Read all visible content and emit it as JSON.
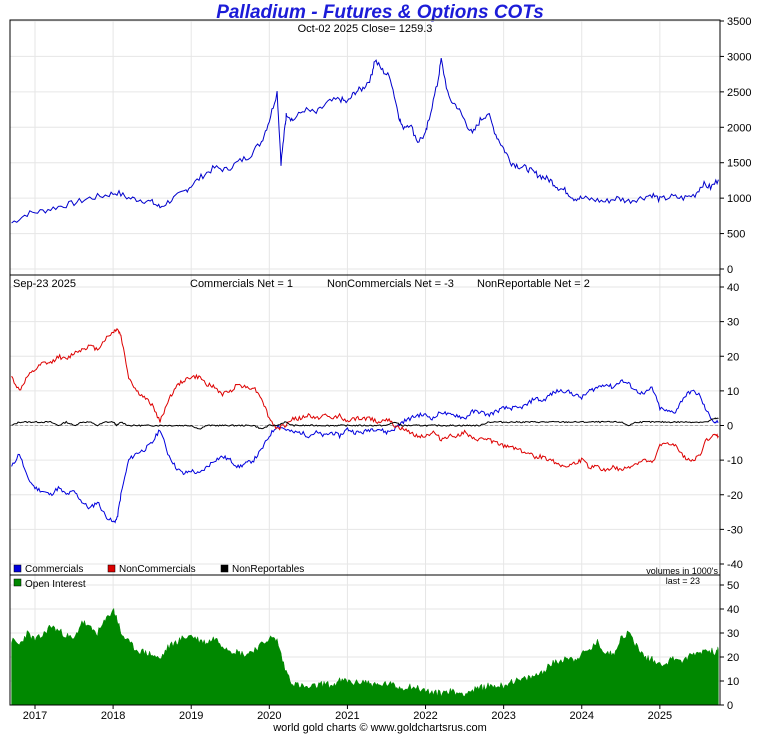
{
  "title": "Palladium - Futures & Options COTs",
  "footer": "world gold charts © www.goldchartsrus.com",
  "colors": {
    "title": "#1c1cd8",
    "price": "#0000cc",
    "commercials": "#0000dd",
    "noncommercials": "#dd0000",
    "nonreportables": "#000000",
    "open_interest": "#008800",
    "grid": "#e6e6e6",
    "zero_line": "#b0b0b0"
  },
  "chart_data": [
    {
      "id": "price",
      "type": "line",
      "header": "Oct-02  2025    Close= 1259.3",
      "ylim": [
        0,
        3500
      ],
      "yticks": [
        "0",
        "500",
        "1000",
        "1500",
        "2000",
        "2500",
        "3000",
        "3500"
      ],
      "x_range": [
        2016.68,
        2025.77
      ],
      "x": [
        2016.7,
        2016.9,
        2017.1,
        2017.3,
        2017.5,
        2017.7,
        2017.9,
        2018.05,
        2018.2,
        2018.35,
        2018.5,
        2018.6,
        2018.75,
        2018.9,
        2019.0,
        2019.15,
        2019.3,
        2019.45,
        2019.6,
        2019.75,
        2019.9,
        2020.0,
        2020.1,
        2020.15,
        2020.2,
        2020.22,
        2020.3,
        2020.45,
        2020.6,
        2020.75,
        2020.9,
        2021.0,
        2021.1,
        2021.2,
        2021.3,
        2021.35,
        2021.45,
        2021.55,
        2021.65,
        2021.7,
        2021.8,
        2021.9,
        2022.0,
        2022.05,
        2022.15,
        2022.2,
        2022.3,
        2022.4,
        2022.5,
        2022.6,
        2022.7,
        2022.8,
        2022.9,
        2023.0,
        2023.1,
        2023.2,
        2023.3,
        2023.4,
        2023.5,
        2023.6,
        2023.7,
        2023.8,
        2023.9,
        2024.0,
        2024.15,
        2024.3,
        2024.45,
        2024.6,
        2024.75,
        2024.9,
        2025.0,
        2025.15,
        2025.3,
        2025.45,
        2025.55,
        2025.65,
        2025.75
      ],
      "values": [
        650,
        780,
        820,
        880,
        930,
        1000,
        1040,
        1080,
        1000,
        980,
        940,
        870,
        980,
        1080,
        1180,
        1320,
        1430,
        1400,
        1510,
        1600,
        1800,
        2100,
        2500,
        1500,
        2000,
        2200,
        2100,
        2250,
        2200,
        2350,
        2400,
        2350,
        2500,
        2550,
        2700,
        2950,
        2800,
        2700,
        2200,
        2000,
        2050,
        1800,
        1900,
        2150,
        2600,
        2950,
        2400,
        2300,
        2100,
        1900,
        2100,
        2200,
        1900,
        1700,
        1500,
        1450,
        1420,
        1350,
        1300,
        1250,
        1150,
        1100,
        1000,
        1000,
        980,
        950,
        1000,
        960,
        1000,
        1050,
        980,
        1020,
        1000,
        1050,
        1200,
        1150,
        1260
      ]
    },
    {
      "id": "positions",
      "type": "line",
      "header_date": "Sep-23  2025",
      "header_commercials": "Commercials Net = 1",
      "header_noncommercials": "NonCommercials Net = -3",
      "header_nonreportable": "NonReportable Net = 2",
      "ylim": [
        -40,
        40
      ],
      "yticks": [
        "-40",
        "-30",
        "-20",
        "-10",
        "0",
        "10",
        "20",
        "30",
        "40"
      ],
      "x_range": [
        2016.68,
        2025.77
      ],
      "x": [
        2016.7,
        2016.8,
        2016.9,
        2017.0,
        2017.1,
        2017.2,
        2017.3,
        2017.4,
        2017.5,
        2017.6,
        2017.7,
        2017.8,
        2017.9,
        2018.0,
        2018.05,
        2018.1,
        2018.2,
        2018.3,
        2018.4,
        2018.5,
        2018.6,
        2018.7,
        2018.8,
        2018.9,
        2019.0,
        2019.1,
        2019.2,
        2019.3,
        2019.4,
        2019.5,
        2019.6,
        2019.7,
        2019.8,
        2019.9,
        2020.0,
        2020.1,
        2020.2,
        2020.3,
        2020.4,
        2020.5,
        2020.6,
        2020.7,
        2020.8,
        2020.9,
        2021.0,
        2021.1,
        2021.2,
        2021.3,
        2021.4,
        2021.5,
        2021.6,
        2021.7,
        2021.8,
        2021.9,
        2022.0,
        2022.1,
        2022.2,
        2022.3,
        2022.4,
        2022.5,
        2022.6,
        2022.7,
        2022.8,
        2022.9,
        2023.0,
        2023.1,
        2023.2,
        2023.3,
        2023.4,
        2023.5,
        2023.6,
        2023.7,
        2023.8,
        2023.9,
        2024.0,
        2024.1,
        2024.2,
        2024.3,
        2024.4,
        2024.5,
        2024.6,
        2024.7,
        2024.8,
        2024.9,
        2025.0,
        2025.1,
        2025.2,
        2025.3,
        2025.4,
        2025.5,
        2025.6,
        2025.7,
        2025.75
      ],
      "series": [
        {
          "name": "Commercials",
          "values": [
            -12,
            -8,
            -15,
            -18,
            -19,
            -20,
            -18,
            -20,
            -19,
            -22,
            -24,
            -22,
            -26,
            -28,
            -27,
            -20,
            -10,
            -8,
            -7,
            -5,
            -1,
            -8,
            -12,
            -14,
            -13,
            -14,
            -12,
            -10,
            -9,
            -10,
            -12,
            -11,
            -10,
            -7,
            -3,
            0,
            -1,
            -2,
            -2,
            -3,
            -2,
            -3,
            -2,
            -3,
            -1,
            -2,
            -2,
            -1,
            -1,
            -2,
            -1,
            1,
            2,
            3,
            3,
            2,
            4,
            3,
            3,
            2,
            4,
            4,
            3,
            4,
            5,
            5,
            5,
            6,
            8,
            7,
            9,
            10,
            10,
            9,
            8,
            10,
            11,
            12,
            11,
            13,
            12,
            10,
            9,
            11,
            5,
            4,
            4,
            8,
            10,
            9,
            4,
            1,
            1
          ]
        },
        {
          "name": "NonCommercials",
          "values": [
            14,
            10,
            14,
            16,
            18,
            18,
            20,
            19,
            21,
            22,
            23,
            22,
            25,
            27,
            28,
            26,
            14,
            10,
            8,
            6,
            1,
            7,
            11,
            13,
            14,
            14,
            12,
            11,
            9,
            10,
            12,
            11,
            11,
            8,
            2,
            -1,
            0,
            2,
            2,
            3,
            2,
            3,
            2,
            3,
            1,
            2,
            2,
            2,
            1,
            2,
            0,
            -1,
            -2,
            -3,
            -3,
            -2,
            -4,
            -3,
            -3,
            -2,
            -4,
            -4,
            -4,
            -5,
            -6,
            -6,
            -7,
            -8,
            -9,
            -9,
            -10,
            -11,
            -12,
            -11,
            -10,
            -12,
            -12,
            -13,
            -12,
            -13,
            -12,
            -11,
            -10,
            -11,
            -6,
            -5,
            -6,
            -9,
            -10,
            -9,
            -4,
            -3,
            -3
          ]
        },
        {
          "name": "NonReportables",
          "values": [
            0,
            1,
            1,
            1,
            1,
            1,
            0,
            1,
            0,
            1,
            1,
            0,
            1,
            1,
            0,
            1,
            0,
            0,
            0,
            0,
            0,
            0,
            0,
            0,
            0,
            -1,
            0,
            0,
            0,
            0,
            0,
            0,
            0,
            -1,
            0,
            0,
            1,
            0,
            0,
            0,
            0,
            0,
            0,
            0,
            0,
            0,
            0,
            0,
            0,
            0,
            1,
            0,
            0,
            0,
            0,
            0,
            0,
            0,
            0,
            0,
            0,
            0,
            1,
            1,
            1,
            1,
            1,
            1,
            1,
            1,
            1,
            1,
            1,
            1,
            1,
            1,
            1,
            1,
            1,
            1,
            0,
            1,
            1,
            1,
            1,
            1,
            1,
            1,
            1,
            1,
            1,
            2,
            2
          ]
        }
      ],
      "legend": [
        "Commercials",
        "NonCommercials",
        "NonReportables"
      ],
      "volume_note": "volumes in 1000's"
    },
    {
      "id": "open_interest",
      "type": "area",
      "legend": "Open Interest",
      "last_label": "last = 23",
      "ylim": [
        0,
        50
      ],
      "yticks": [
        "0",
        "10",
        "20",
        "30",
        "40",
        "50"
      ],
      "x_range": [
        2016.68,
        2025.77
      ],
      "x": [
        2016.7,
        2016.8,
        2016.9,
        2017.0,
        2017.1,
        2017.2,
        2017.3,
        2017.4,
        2017.5,
        2017.6,
        2017.7,
        2017.8,
        2017.9,
        2018.0,
        2018.05,
        2018.1,
        2018.2,
        2018.3,
        2018.4,
        2018.5,
        2018.6,
        2018.7,
        2018.8,
        2018.9,
        2019.0,
        2019.1,
        2019.2,
        2019.3,
        2019.4,
        2019.5,
        2019.6,
        2019.7,
        2019.8,
        2019.9,
        2020.0,
        2020.1,
        2020.2,
        2020.3,
        2020.4,
        2020.5,
        2020.6,
        2020.7,
        2020.8,
        2020.9,
        2021.0,
        2021.1,
        2021.2,
        2021.3,
        2021.4,
        2021.5,
        2021.6,
        2021.7,
        2021.8,
        2021.9,
        2022.0,
        2022.1,
        2022.2,
        2022.3,
        2022.4,
        2022.5,
        2022.6,
        2022.7,
        2022.8,
        2022.9,
        2023.0,
        2023.1,
        2023.2,
        2023.3,
        2023.4,
        2023.5,
        2023.6,
        2023.7,
        2023.8,
        2023.9,
        2024.0,
        2024.1,
        2024.2,
        2024.3,
        2024.4,
        2024.5,
        2024.6,
        2024.7,
        2024.8,
        2024.9,
        2025.0,
        2025.1,
        2025.2,
        2025.3,
        2025.4,
        2025.5,
        2025.6,
        2025.7,
        2025.75
      ],
      "values": [
        27,
        25,
        30,
        27,
        29,
        33,
        31,
        29,
        27,
        35,
        32,
        30,
        35,
        40,
        36,
        30,
        26,
        23,
        22,
        21,
        19,
        24,
        26,
        28,
        29,
        27,
        26,
        28,
        25,
        23,
        22,
        21,
        23,
        25,
        28,
        27,
        15,
        9,
        8,
        7,
        8,
        9,
        8,
        10,
        10,
        9,
        10,
        9,
        8,
        9,
        8,
        7,
        8,
        7,
        6,
        5,
        5,
        6,
        5,
        5,
        6,
        7,
        8,
        8,
        8,
        10,
        10,
        11,
        12,
        14,
        17,
        18,
        20,
        19,
        21,
        23,
        26,
        22,
        21,
        28,
        30,
        25,
        20,
        19,
        17,
        18,
        20,
        18,
        21,
        22,
        23,
        22,
        23
      ]
    }
  ],
  "x_axis": {
    "labels": [
      "2017",
      "2018",
      "2019",
      "2020",
      "2021",
      "2022",
      "2023",
      "2024",
      "2025"
    ]
  }
}
